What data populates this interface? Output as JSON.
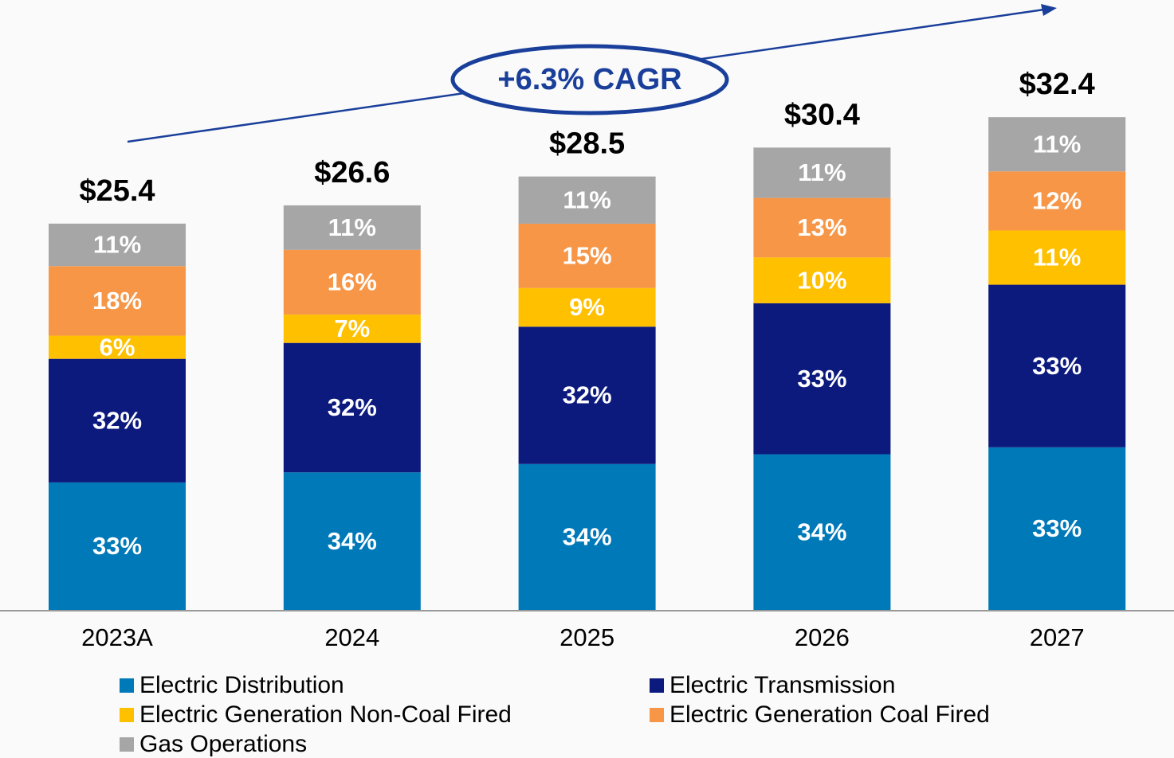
{
  "chart_data": {
    "type": "stacked_bar",
    "annotation": "+6.3% CAGR",
    "categories": [
      "2023A",
      "2024",
      "2025",
      "2026",
      "2027"
    ],
    "totals": {
      "values": [
        25.4,
        26.6,
        28.5,
        30.4,
        32.4
      ],
      "value_labels": [
        "$25.4",
        "$26.6",
        "$28.5",
        "$30.4",
        "$32.4"
      ]
    },
    "series": [
      {
        "name": "Electric Distribution",
        "color": "#0079b9",
        "values": [
          33,
          34,
          34,
          34,
          33
        ],
        "value_labels": [
          "33%",
          "34%",
          "34%",
          "34%",
          "33%"
        ]
      },
      {
        "name": "Electric Transmission",
        "color": "#0c1a7e",
        "values": [
          32,
          32,
          32,
          33,
          33
        ],
        "value_labels": [
          "32%",
          "32%",
          "32%",
          "33%",
          "33%"
        ]
      },
      {
        "name": "Electric Generation Non-Coal Fired",
        "color": "#ffc000",
        "values": [
          6,
          7,
          9,
          10,
          11
        ],
        "value_labels": [
          "6%",
          "7%",
          "9%",
          "10%",
          "11%"
        ]
      },
      {
        "name": "Electric Generation Coal Fired",
        "color": "#f79646",
        "values": [
          18,
          16,
          15,
          13,
          12
        ],
        "value_labels": [
          "18%",
          "16%",
          "15%",
          "13%",
          "12%"
        ]
      },
      {
        "name": "Gas Operations",
        "color": "#a6a6a6",
        "values": [
          11,
          11,
          11,
          11,
          11
        ],
        "value_labels": [
          "11%",
          "11%",
          "11%",
          "11%",
          "11%"
        ]
      }
    ]
  }
}
